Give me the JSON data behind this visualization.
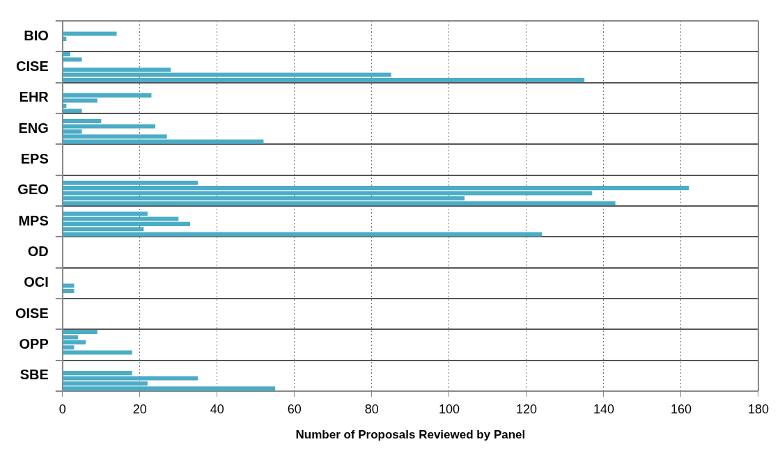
{
  "chart_data": {
    "type": "bar",
    "orientation": "horizontal",
    "xlabel": "Number of Proposals Reviewed by Panel",
    "categories": [
      "BIO",
      "CISE",
      "EHR",
      "ENG",
      "EPS",
      "GEO",
      "MPS",
      "OD",
      "OCI",
      "OISE",
      "OPP",
      "SBE"
    ],
    "series": [
      {
        "color": "#4bacc6",
        "values": [
          null,
          2,
          null,
          null,
          null,
          null,
          null,
          null,
          null,
          null,
          9,
          null
        ]
      },
      {
        "color": "#4bacc6",
        "values": [
          null,
          5,
          null,
          10,
          null,
          35,
          22,
          null,
          null,
          null,
          4,
          null
        ]
      },
      {
        "color": "#4bacc6",
        "values": [
          14,
          null,
          23,
          24,
          null,
          162,
          30,
          null,
          null,
          null,
          6,
          18
        ]
      },
      {
        "color": "#4bacc6",
        "values": [
          1,
          28,
          9,
          5,
          null,
          137,
          33,
          null,
          3,
          null,
          3,
          35
        ]
      },
      {
        "color": "#4bacc6",
        "values": [
          null,
          85,
          1,
          27,
          null,
          104,
          21,
          null,
          3,
          null,
          18,
          22
        ]
      },
      {
        "color": "#4bacc6",
        "values": [
          null,
          135,
          5,
          52,
          null,
          143,
          124,
          null,
          null,
          null,
          null,
          55
        ]
      }
    ],
    "xlim": [
      0,
      180
    ],
    "xticks": [
      0,
      20,
      40,
      60,
      80,
      100,
      120,
      140,
      160,
      180
    ],
    "grid": true
  }
}
